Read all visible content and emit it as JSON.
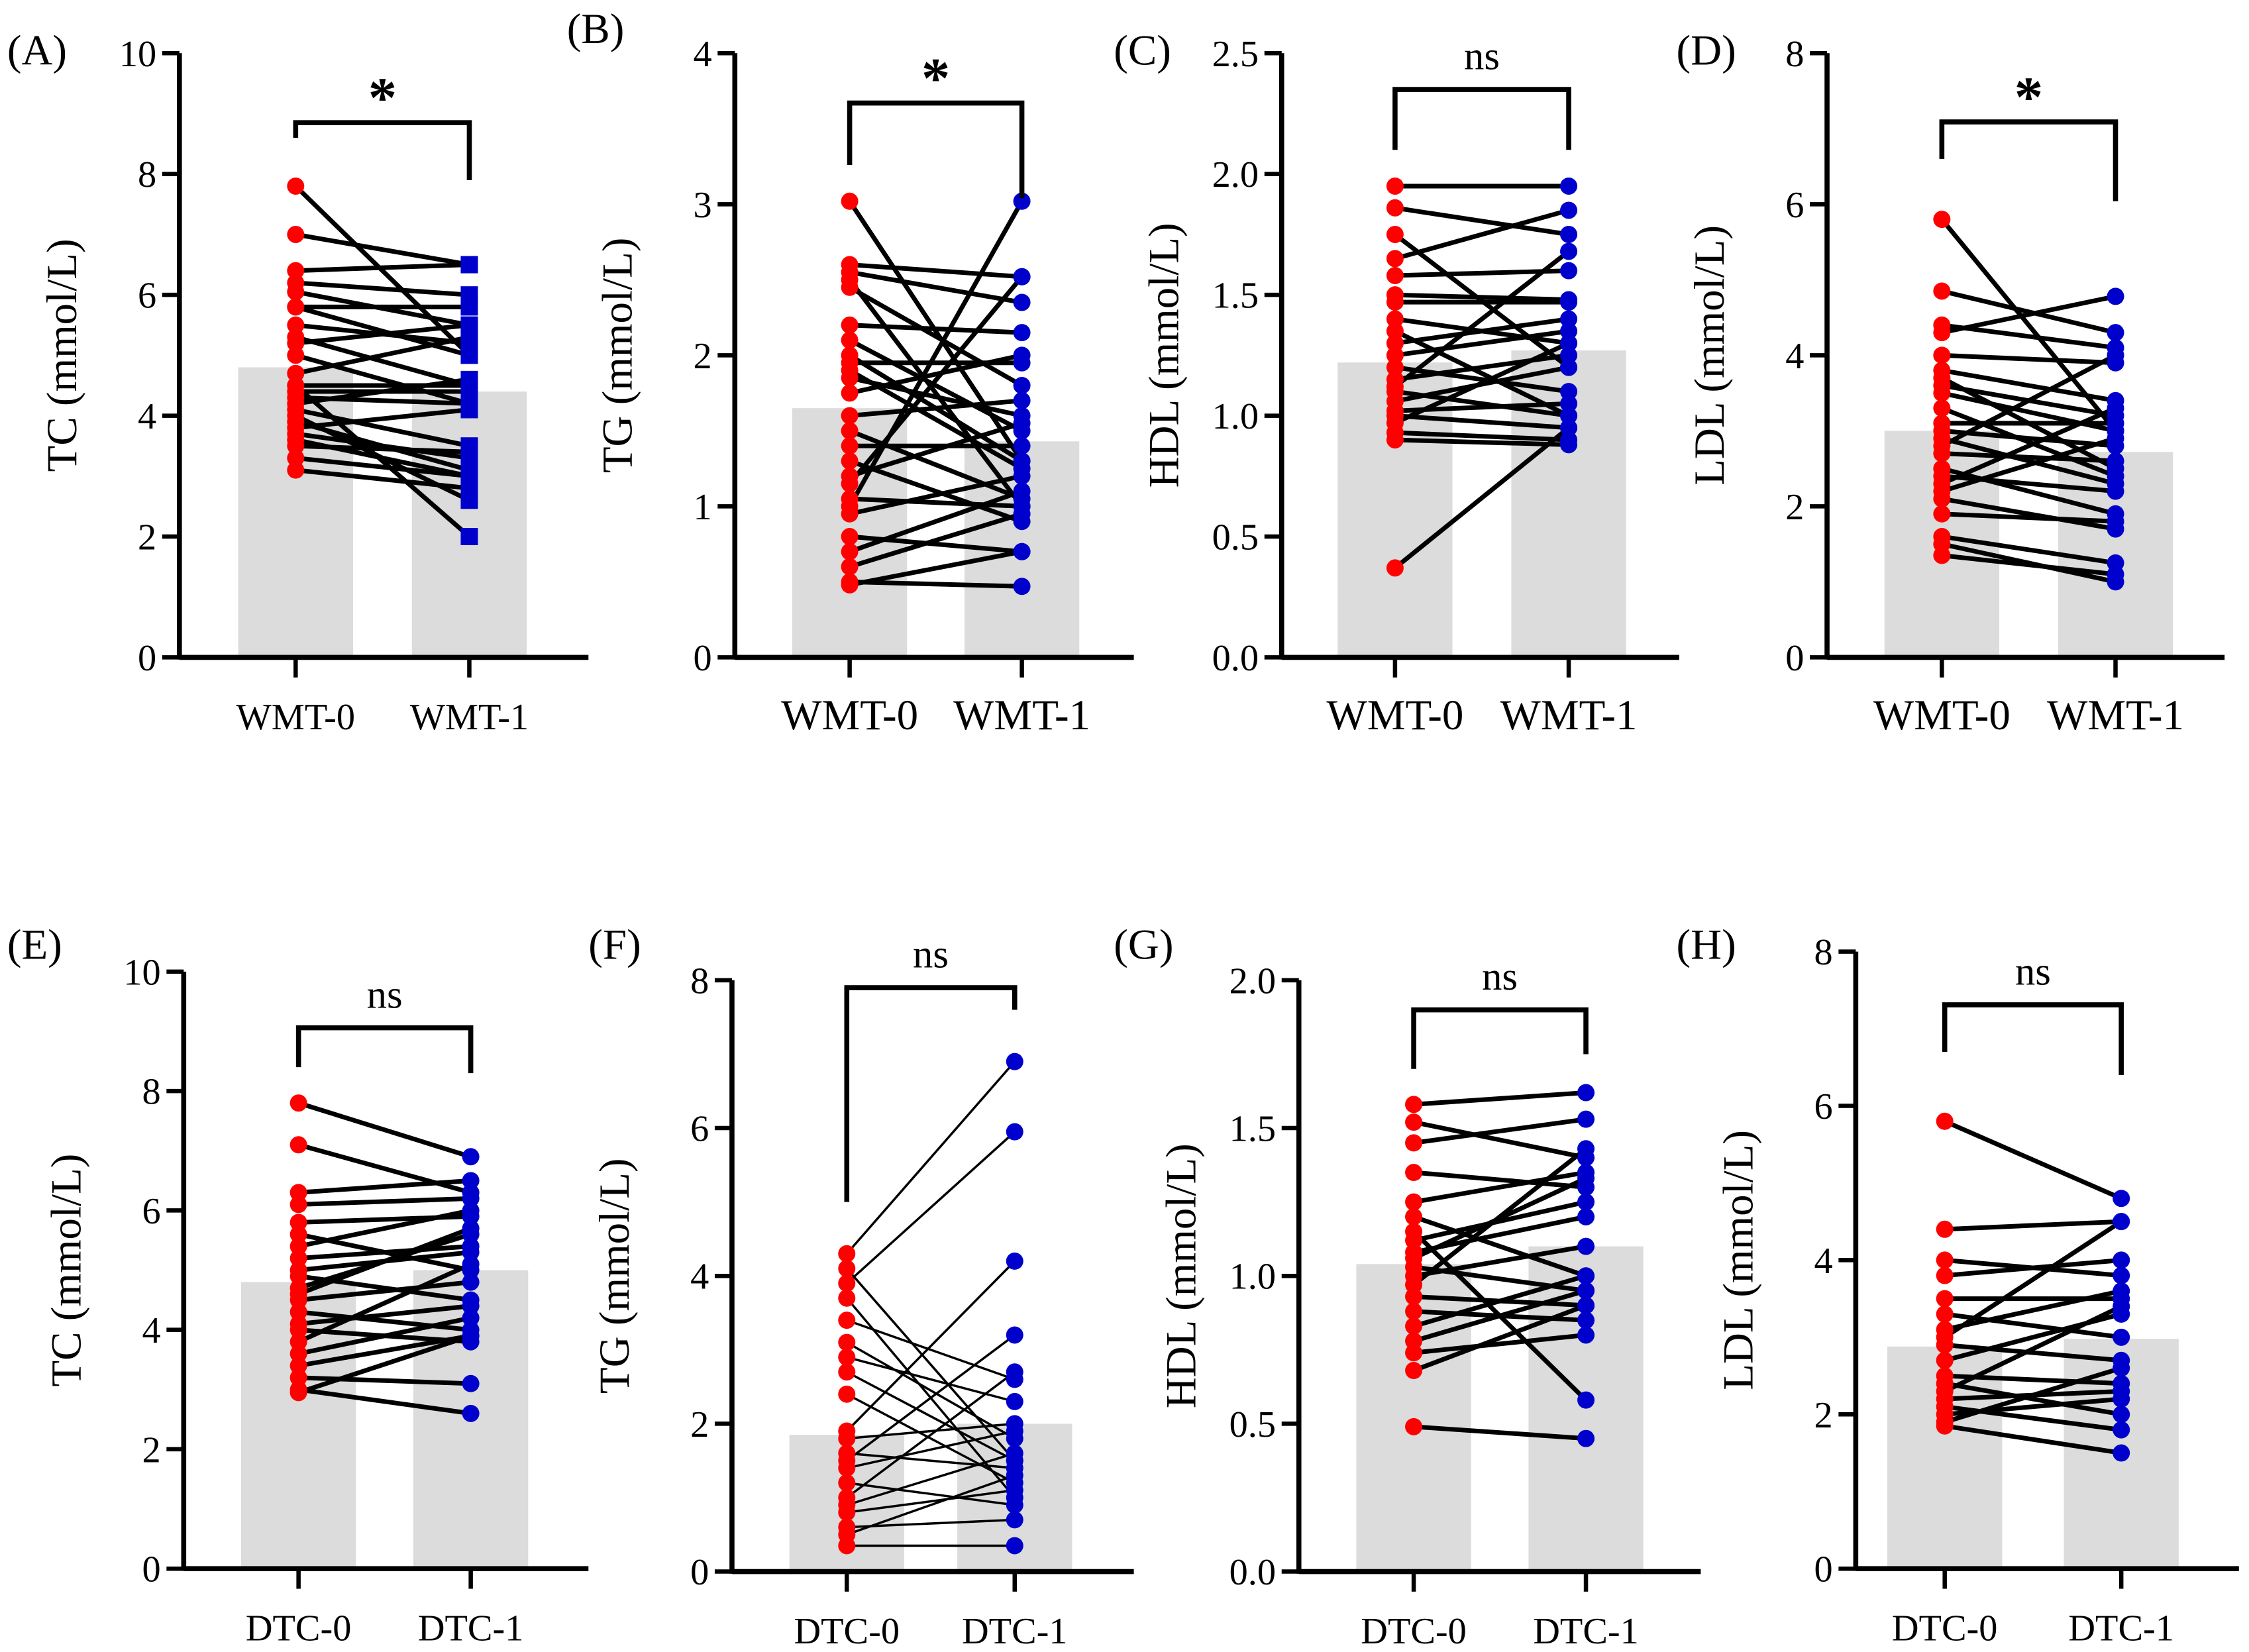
{
  "chart_data": [
    {
      "panel": "(A)",
      "type": "paired-bar",
      "ylabel": "TC (mmol/L)",
      "categories": [
        "WMT-0",
        "WMT-1"
      ],
      "ylim": [
        0,
        10
      ],
      "yticks": [
        0,
        2,
        4,
        6,
        8,
        10
      ],
      "decimals": 0,
      "means": [
        4.8,
        4.4
      ],
      "significance": "*",
      "bracket": [
        8.85,
        8.6,
        7.9
      ],
      "marker1": "square",
      "thin": false,
      "pairs": [
        [
          7.8,
          5.0
        ],
        [
          7.0,
          6.5
        ],
        [
          6.4,
          6.5
        ],
        [
          6.2,
          6.0
        ],
        [
          6.05,
          5.5
        ],
        [
          5.8,
          5.8
        ],
        [
          5.8,
          5.0
        ],
        [
          5.5,
          5.2
        ],
        [
          5.3,
          4.5
        ],
        [
          5.2,
          5.5
        ],
        [
          5.0,
          4.2
        ],
        [
          4.7,
          5.3
        ],
        [
          4.5,
          4.5
        ],
        [
          4.4,
          4.4
        ],
        [
          4.3,
          4.2
        ],
        [
          4.2,
          4.6
        ],
        [
          4.1,
          3.5
        ],
        [
          4.0,
          2.6
        ],
        [
          3.8,
          4.1
        ],
        [
          3.7,
          3.3
        ],
        [
          3.6,
          3.0
        ],
        [
          3.5,
          3.4
        ],
        [
          3.3,
          3.0
        ],
        [
          3.1,
          2.8
        ],
        [
          4.5,
          2.0
        ],
        [
          3.9,
          3.1
        ]
      ]
    },
    {
      "panel": "(B)",
      "type": "paired-bar",
      "ylabel": "TG (mmol/L)",
      "categories": [
        "WMT-0",
        "WMT-1"
      ],
      "ylim": [
        0,
        4
      ],
      "yticks": [
        0,
        1,
        2,
        3,
        4
      ],
      "decimals": 0,
      "means": [
        1.65,
        1.43
      ],
      "significance": "*",
      "bracket": [
        3.67,
        3.26,
        3.04
      ],
      "marker1": "circle",
      "thin": false,
      "pairs": [
        [
          3.02,
          1.3
        ],
        [
          2.6,
          2.52
        ],
        [
          2.55,
          2.35
        ],
        [
          2.5,
          1.0
        ],
        [
          2.45,
          1.8
        ],
        [
          2.2,
          2.15
        ],
        [
          2.1,
          1.5
        ],
        [
          1.95,
          1.95
        ],
        [
          1.9,
          1.25
        ],
        [
          1.85,
          1.6
        ],
        [
          1.75,
          2.0
        ],
        [
          1.6,
          1.7
        ],
        [
          1.5,
          1.05
        ],
        [
          1.4,
          1.4
        ],
        [
          1.3,
          0.9
        ],
        [
          1.2,
          1.55
        ],
        [
          1.05,
          1.0
        ],
        [
          1.0,
          3.02
        ],
        [
          0.95,
          1.2
        ],
        [
          0.8,
          0.7
        ],
        [
          0.7,
          1.1
        ],
        [
          0.6,
          0.95
        ],
        [
          0.5,
          0.47
        ],
        [
          0.48,
          0.7
        ],
        [
          2.0,
          1.3
        ],
        [
          1.15,
          2.52
        ]
      ]
    },
    {
      "panel": "(C)",
      "type": "paired-bar",
      "ylabel": "HDL (mmol/L)",
      "categories": [
        "WMT-0",
        "WMT-1"
      ],
      "ylim": [
        0,
        2.5
      ],
      "yticks": [
        0,
        0.5,
        1,
        1.5,
        2,
        2.5
      ],
      "decimals": 1,
      "means": [
        1.22,
        1.27
      ],
      "significance": "ns",
      "bracket": [
        2.35,
        2.1,
        2.1
      ],
      "marker1": "circle",
      "thin": false,
      "pairs": [
        [
          1.95,
          1.95
        ],
        [
          1.86,
          1.75
        ],
        [
          1.75,
          1.2
        ],
        [
          1.65,
          1.85
        ],
        [
          1.58,
          1.6
        ],
        [
          1.5,
          1.48
        ],
        [
          1.47,
          1.47
        ],
        [
          1.4,
          1.3
        ],
        [
          1.3,
          1.4
        ],
        [
          1.25,
          1.35
        ],
        [
          1.2,
          1.1
        ],
        [
          1.15,
          1.25
        ],
        [
          1.1,
          1.0
        ],
        [
          1.06,
          1.2
        ],
        [
          1.02,
          1.05
        ],
        [
          1.0,
          0.95
        ],
        [
          0.97,
          1.3
        ],
        [
          0.93,
          0.9
        ],
        [
          0.9,
          0.88
        ],
        [
          1.12,
          1.68
        ],
        [
          1.35,
          1.0
        ],
        [
          0.37,
          0.95
        ]
      ]
    },
    {
      "panel": "(D)",
      "type": "paired-bar",
      "ylabel": "LDL (mmol/L)",
      "categories": [
        "WMT-0",
        "WMT-1"
      ],
      "ylim": [
        0,
        8
      ],
      "yticks": [
        0,
        2,
        4,
        6,
        8
      ],
      "decimals": 0,
      "means": [
        3.0,
        2.72
      ],
      "significance": "*",
      "bracket": [
        7.09,
        6.6,
        6.04
      ],
      "marker1": "circle",
      "thin": false,
      "pairs": [
        [
          5.8,
          3.0
        ],
        [
          4.85,
          4.3
        ],
        [
          4.4,
          4.1
        ],
        [
          4.3,
          4.78
        ],
        [
          4.0,
          3.9
        ],
        [
          3.8,
          3.4
        ],
        [
          3.6,
          3.2
        ],
        [
          3.5,
          3.0
        ],
        [
          3.3,
          2.4
        ],
        [
          3.1,
          3.1
        ],
        [
          3.0,
          2.8
        ],
        [
          2.9,
          2.3
        ],
        [
          2.8,
          4.0
        ],
        [
          2.7,
          2.6
        ],
        [
          2.5,
          1.9
        ],
        [
          2.4,
          2.2
        ],
        [
          2.3,
          3.3
        ],
        [
          2.1,
          1.7
        ],
        [
          1.9,
          1.8
        ],
        [
          1.6,
          1.25
        ],
        [
          1.5,
          1.0
        ],
        [
          1.35,
          1.1
        ],
        [
          2.2,
          2.9
        ],
        [
          3.7,
          2.5
        ]
      ]
    },
    {
      "panel": "(E)",
      "type": "paired-bar",
      "ylabel": "TC (mmol/L)",
      "categories": [
        "DTC-0",
        "DTC-1"
      ],
      "ylim": [
        0,
        10
      ],
      "yticks": [
        0,
        2,
        4,
        6,
        8,
        10
      ],
      "decimals": 0,
      "means": [
        4.8,
        5.0
      ],
      "significance": "ns",
      "bracket": [
        9.06,
        8.4,
        8.3
      ],
      "marker1": "circle",
      "thin": false,
      "pairs": [
        [
          7.8,
          6.9
        ],
        [
          7.1,
          6.3
        ],
        [
          6.3,
          6.5
        ],
        [
          6.1,
          6.2
        ],
        [
          5.8,
          5.9
        ],
        [
          5.6,
          5.0
        ],
        [
          5.4,
          6.0
        ],
        [
          5.2,
          5.4
        ],
        [
          5.0,
          5.3
        ],
        [
          4.9,
          4.5
        ],
        [
          4.7,
          5.6
        ],
        [
          4.5,
          4.8
        ],
        [
          4.3,
          4.0
        ],
        [
          4.1,
          4.4
        ],
        [
          4.0,
          3.8
        ],
        [
          3.8,
          5.1
        ],
        [
          3.6,
          4.2
        ],
        [
          3.4,
          3.9
        ],
        [
          3.2,
          3.1
        ],
        [
          3.0,
          2.6
        ],
        [
          2.95,
          3.9
        ],
        [
          4.6,
          5.7
        ]
      ]
    },
    {
      "panel": "(F)",
      "type": "paired-bar",
      "ylabel": "TG (mmol/L)",
      "categories": [
        "DTC-0",
        "DTC-1"
      ],
      "ylim": [
        0,
        8
      ],
      "yticks": [
        0,
        2,
        4,
        6,
        8
      ],
      "decimals": 0,
      "means": [
        1.85,
        2.0
      ],
      "significance": "ns",
      "bracket": [
        7.9,
        5.0,
        7.6
      ],
      "marker1": "circle",
      "thin": true,
      "pairs": [
        [
          4.3,
          6.9
        ],
        [
          4.1,
          1.5
        ],
        [
          3.9,
          5.95
        ],
        [
          3.7,
          1.0
        ],
        [
          3.4,
          2.6
        ],
        [
          3.1,
          1.8
        ],
        [
          2.9,
          2.3
        ],
        [
          2.4,
          1.2
        ],
        [
          1.9,
          4.2
        ],
        [
          1.8,
          2.0
        ],
        [
          1.6,
          1.4
        ],
        [
          1.5,
          3.2
        ],
        [
          1.4,
          1.9
        ],
        [
          1.2,
          0.9
        ],
        [
          1.0,
          2.7
        ],
        [
          0.9,
          1.6
        ],
        [
          0.8,
          1.1
        ],
        [
          0.6,
          0.7
        ],
        [
          0.5,
          1.3
        ],
        [
          0.35,
          0.35
        ],
        [
          2.7,
          1.5
        ]
      ]
    },
    {
      "panel": "(G)",
      "type": "paired-bar",
      "ylabel": "HDL (mmol/L)",
      "categories": [
        "DTC-0",
        "DTC-1"
      ],
      "ylim": [
        0,
        2
      ],
      "yticks": [
        0,
        0.5,
        1,
        1.5,
        2
      ],
      "decimals": 1,
      "means": [
        1.04,
        1.1
      ],
      "significance": "ns",
      "bracket": [
        1.9,
        1.7,
        1.75
      ],
      "marker1": "circle",
      "thin": false,
      "pairs": [
        [
          1.58,
          1.62
        ],
        [
          1.52,
          1.4
        ],
        [
          1.45,
          1.53
        ],
        [
          1.35,
          1.3
        ],
        [
          1.25,
          1.35
        ],
        [
          1.2,
          1.0
        ],
        [
          1.12,
          1.25
        ],
        [
          1.08,
          1.2
        ],
        [
          1.03,
          0.95
        ],
        [
          1.0,
          1.1
        ],
        [
          0.97,
          1.43
        ],
        [
          0.93,
          0.9
        ],
        [
          0.88,
          0.85
        ],
        [
          0.83,
          1.0
        ],
        [
          0.78,
          0.95
        ],
        [
          0.74,
          0.8
        ],
        [
          0.68,
          0.9
        ],
        [
          1.15,
          0.58
        ],
        [
          0.49,
          0.45
        ],
        [
          1.06,
          1.33
        ]
      ]
    },
    {
      "panel": "(H)",
      "type": "paired-bar",
      "ylabel": "LDL (mmol/L)",
      "categories": [
        "DTC-0",
        "DTC-1"
      ],
      "ylim": [
        0,
        8
      ],
      "yticks": [
        0,
        2,
        4,
        6,
        8
      ],
      "decimals": 0,
      "means": [
        2.88,
        2.98
      ],
      "significance": "ns",
      "bracket": [
        7.31,
        6.7,
        6.4
      ],
      "marker1": "circle",
      "thin": false,
      "pairs": [
        [
          5.8,
          4.8
        ],
        [
          4.4,
          4.5
        ],
        [
          4.0,
          3.8
        ],
        [
          3.8,
          4.0
        ],
        [
          3.5,
          3.5
        ],
        [
          3.3,
          3.0
        ],
        [
          3.1,
          3.6
        ],
        [
          2.9,
          2.7
        ],
        [
          2.7,
          3.3
        ],
        [
          2.5,
          2.4
        ],
        [
          2.4,
          2.0
        ],
        [
          2.3,
          3.4
        ],
        [
          2.2,
          2.3
        ],
        [
          2.1,
          1.8
        ],
        [
          2.0,
          2.2
        ],
        [
          1.85,
          1.5
        ],
        [
          1.9,
          2.6
        ],
        [
          3.0,
          4.5
        ]
      ]
    }
  ],
  "colors": {
    "before": "#ff0000",
    "after": "#0000cc",
    "bar": "#dcdcdc",
    "line": "#000000"
  }
}
